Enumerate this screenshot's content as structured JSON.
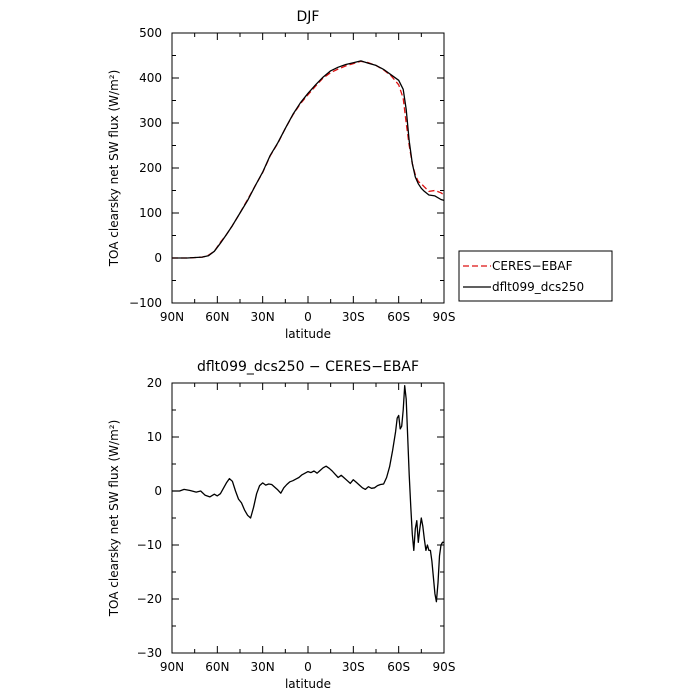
{
  "chart_data": [
    {
      "type": "line",
      "title": "DJF",
      "xlabel": "latitude",
      "ylabel": "TOA clearsky net SW flux (W/m²)",
      "x_ticks": [
        -90,
        -60,
        -30,
        0,
        30,
        60,
        90
      ],
      "x_tick_labels": [
        "90N",
        "60N",
        "30N",
        "0",
        "30S",
        "60S",
        "90S"
      ],
      "xlim": [
        -90,
        90
      ],
      "ylim": [
        -100,
        500
      ],
      "y_ticks": [
        -100,
        0,
        100,
        200,
        300,
        400,
        500
      ],
      "y_tick_labels": [
        "−100",
        "0",
        "100",
        "200",
        "300",
        "400",
        "500"
      ],
      "legend_position": "right",
      "series": [
        {
          "name": "CERES−EBAF",
          "color": "#dd1111",
          "dash": true,
          "x": [
            -90,
            -80,
            -70,
            -66,
            -62,
            -58,
            -54,
            -50,
            -45,
            -40,
            -35,
            -30,
            -25,
            -20,
            -15,
            -10,
            -5,
            0,
            5,
            10,
            15,
            20,
            25,
            30,
            35,
            40,
            45,
            50,
            55,
            60,
            63,
            65,
            67,
            69,
            71,
            73,
            75,
            77,
            80,
            84,
            88,
            90
          ],
          "y": [
            0,
            0,
            2,
            6,
            15,
            35,
            52,
            72,
            100,
            130,
            160,
            190,
            227,
            255,
            288,
            318,
            343,
            363,
            382,
            400,
            412,
            420,
            427,
            432,
            437,
            434,
            428,
            418,
            405,
            385,
            355,
            300,
            250,
            210,
            185,
            170,
            165,
            158,
            148,
            150,
            145,
            140
          ]
        },
        {
          "name": "dflt099_dcs250",
          "color": "#000000",
          "dash": false,
          "x": [
            -90,
            -80,
            -70,
            -66,
            -62,
            -58,
            -54,
            -50,
            -45,
            -40,
            -35,
            -30,
            -25,
            -20,
            -15,
            -10,
            -5,
            0,
            5,
            10,
            15,
            20,
            25,
            30,
            35,
            40,
            45,
            50,
            55,
            60,
            63,
            65,
            67,
            69,
            71,
            73,
            75,
            77,
            80,
            84,
            88,
            90
          ],
          "y": [
            0,
            0,
            2,
            5,
            15,
            33,
            52,
            72,
            100,
            128,
            160,
            191,
            228,
            256,
            288,
            319,
            345,
            366,
            385,
            402,
            416,
            424,
            430,
            434,
            438,
            433,
            428,
            419,
            407,
            395,
            375,
            330,
            260,
            210,
            180,
            165,
            155,
            148,
            140,
            138,
            130,
            128
          ]
        }
      ]
    },
    {
      "type": "line",
      "title": "dflt099_dcs250 − CERES−EBAF",
      "xlabel": "latitude",
      "ylabel": "TOA clearsky net SW flux (W/m²)",
      "x_ticks": [
        -90,
        -60,
        -30,
        0,
        30,
        60,
        90
      ],
      "x_tick_labels": [
        "90N",
        "60N",
        "30N",
        "0",
        "30S",
        "60S",
        "90S"
      ],
      "xlim": [
        -90,
        90
      ],
      "ylim": [
        -30,
        20
      ],
      "y_ticks": [
        -30,
        -20,
        -10,
        0,
        10,
        20
      ],
      "y_tick_labels": [
        "−30",
        "−20",
        "−10",
        "0",
        "10",
        "20"
      ],
      "series": [
        {
          "color": "#000000",
          "x": [
            -90,
            -85,
            -82,
            -78,
            -74,
            -71,
            -68,
            -65,
            -62,
            -60,
            -58,
            -56,
            -54,
            -52,
            -50,
            -48,
            -46,
            -44,
            -42,
            -40,
            -38,
            -36,
            -34,
            -32,
            -30,
            -28,
            -26,
            -24,
            -22,
            -20,
            -18,
            -16,
            -14,
            -12,
            -10,
            -8,
            -6,
            -4,
            -2,
            0,
            2,
            4,
            6,
            8,
            10,
            12,
            14,
            16,
            18,
            20,
            22,
            24,
            26,
            28,
            30,
            32,
            34,
            36,
            38,
            40,
            42,
            44,
            46,
            48,
            50,
            52,
            54,
            56,
            58,
            59,
            60,
            61,
            62,
            63,
            64,
            65,
            66,
            67,
            68,
            69,
            70,
            71,
            72,
            73,
            74,
            75,
            76,
            77,
            78,
            79,
            80,
            81,
            82,
            83,
            84,
            85,
            86,
            87,
            88,
            89,
            90
          ],
          "y": [
            0,
            0,
            0.3,
            0.1,
            -0.2,
            0,
            -0.8,
            -1.1,
            -0.6,
            -0.9,
            -0.5,
            0.5,
            1.5,
            2.3,
            1.8,
            0,
            -1.5,
            -2.2,
            -3.5,
            -4.5,
            -5.0,
            -3.0,
            -0.5,
            1.0,
            1.5,
            1.1,
            1.3,
            1.2,
            0.7,
            0.2,
            -0.4,
            0.6,
            1.2,
            1.7,
            1.9,
            2.2,
            2.5,
            3.0,
            3.3,
            3.6,
            3.4,
            3.7,
            3.3,
            3.8,
            4.3,
            4.6,
            4.2,
            3.7,
            3.1,
            2.5,
            2.9,
            2.4,
            1.9,
            1.4,
            2.1,
            1.6,
            1.1,
            0.6,
            0.3,
            0.8,
            0.5,
            0.6,
            1.0,
            1.2,
            1.3,
            2.5,
            4.5,
            7.5,
            11.0,
            13.5,
            14.0,
            11.5,
            12.0,
            15.0,
            19.5,
            17.0,
            10.0,
            3.0,
            -3.0,
            -8.0,
            -11.0,
            -7.0,
            -5.5,
            -9.5,
            -7.0,
            -5.0,
            -6.5,
            -9.0,
            -11.0,
            -10.0,
            -11.0,
            -11.0,
            -13.0,
            -16.0,
            -19.0,
            -20.5,
            -17.0,
            -12.0,
            -10.0,
            -9.5,
            -9.5
          ]
        }
      ]
    }
  ]
}
